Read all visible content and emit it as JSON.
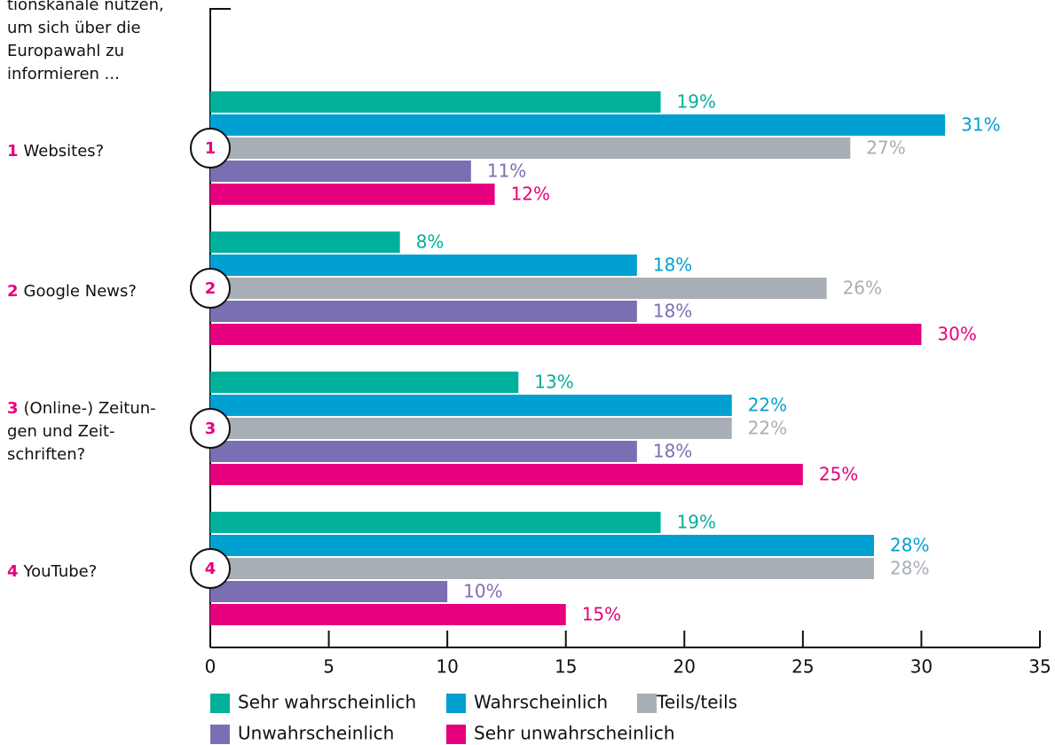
{
  "chart_data": {
    "type": "bar",
    "orientation": "horizontal",
    "intro": [
      "tionskanäle nutzen,",
      "um sich über die",
      "Europawahl zu",
      "informieren ..."
    ],
    "group_numbers": [
      "1",
      "2",
      "3",
      "4"
    ],
    "categories": [
      [
        "Websites?"
      ],
      [
        "Google News?"
      ],
      [
        "(Online-) Zeitun-",
        "gen und Zeit-",
        "schriften?"
      ],
      [
        "YouTube?"
      ]
    ],
    "series": [
      {
        "name": "Sehr wahrscheinlich",
        "color": "#00b09b",
        "label_color": "#00b09b",
        "values": [
          19,
          8,
          13,
          19
        ],
        "value_labels": [
          "19%",
          "8%",
          "13%",
          "19%"
        ]
      },
      {
        "name": "Wahrscheinlich",
        "color": "#00a0d2",
        "label_color": "#00a0d2",
        "values": [
          31,
          18,
          22,
          28
        ],
        "value_labels": [
          "31%",
          "18%",
          "22%",
          "28%"
        ]
      },
      {
        "name": "Teils/teils",
        "color": "#a8aeb6",
        "label_color": "#a8aeb6",
        "values": [
          27,
          26,
          22,
          28
        ],
        "value_labels": [
          "27%",
          "26%",
          "22%",
          "28%"
        ]
      },
      {
        "name": "Unwahrscheinlich",
        "color": "#7b6fb4",
        "label_color": "#7b6fb4",
        "values": [
          11,
          18,
          18,
          10
        ],
        "value_labels": [
          "11%",
          "18%",
          "18%",
          "10%"
        ]
      },
      {
        "name": "Sehr unwahrscheinlich",
        "color": "#e6007e",
        "label_color": "#e6007e",
        "values": [
          12,
          30,
          25,
          15
        ],
        "value_labels": [
          "12%",
          "30%",
          "25%",
          "15%"
        ]
      }
    ],
    "xlim": [
      0,
      35
    ],
    "xticks": [
      0,
      5,
      10,
      15,
      20,
      25,
      30,
      35
    ],
    "accent_color": "#e6007e"
  }
}
